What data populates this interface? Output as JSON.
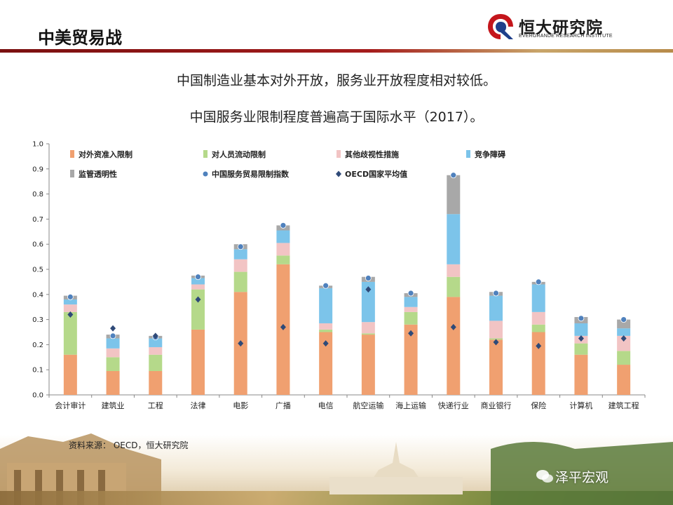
{
  "header": {
    "title": "中美贸易战",
    "logo_name": "恒大研究院",
    "logo_sub": "EVERGRANDE RESEARCH INSTITUTE"
  },
  "headlines": [
    "中国制造业基本对外开放，服务业开放程度相对较低。",
    "中国服务业限制程度普遍高于国际水平（2017）。"
  ],
  "source": "资料来源：  OECD，恒大研究院",
  "watermark": "泽平宏观",
  "chart_data": {
    "type": "bar",
    "stacked": true,
    "title": "",
    "xlabel": "",
    "ylabel": "",
    "ylim": [
      0,
      1.0
    ],
    "yticks": [
      "0.0",
      "0.1",
      "0.2",
      "0.3",
      "0.4",
      "0.5",
      "0.6",
      "0.7",
      "0.8",
      "0.9",
      "1.0"
    ],
    "grid": false,
    "legend_position": "top",
    "categories": [
      "会计审计",
      "建筑业",
      "工程",
      "法律",
      "电影",
      "广播",
      "电信",
      "航空运输",
      "海上运输",
      "快递行业",
      "商业银行",
      "保险",
      "计算机",
      "建筑工程"
    ],
    "series": [
      {
        "name": "对外资准入限制",
        "color": "#f0a070",
        "values": [
          0.16,
          0.095,
          0.095,
          0.26,
          0.41,
          0.52,
          0.25,
          0.24,
          0.28,
          0.39,
          0.22,
          0.25,
          0.16,
          0.12
        ]
      },
      {
        "name": "对人员流动限制",
        "color": "#b5d98a",
        "values": [
          0.17,
          0.055,
          0.065,
          0.16,
          0.08,
          0.035,
          0.01,
          0.005,
          0.05,
          0.08,
          0.005,
          0.03,
          0.045,
          0.055
        ]
      },
      {
        "name": "其他歧视性措施",
        "color": "#f2c4c4",
        "values": [
          0.03,
          0.035,
          0.03,
          0.02,
          0.05,
          0.05,
          0.025,
          0.045,
          0.02,
          0.05,
          0.07,
          0.05,
          0.03,
          0.06
        ]
      },
      {
        "name": "竞争障碍",
        "color": "#7cc4ea",
        "values": [
          0.02,
          0.04,
          0.035,
          0.025,
          0.04,
          0.05,
          0.14,
          0.16,
          0.04,
          0.2,
          0.1,
          0.11,
          0.05,
          0.03
        ]
      },
      {
        "name": "监管透明性",
        "color": "#a8a8a8",
        "values": [
          0.015,
          0.015,
          0.01,
          0.01,
          0.02,
          0.02,
          0.01,
          0.02,
          0.015,
          0.155,
          0.015,
          0.01,
          0.025,
          0.035
        ]
      }
    ],
    "markers": [
      {
        "name": "中国服务贸易限制指数",
        "shape": "circle",
        "color": "#4f81bd",
        "values": [
          0.39,
          0.235,
          0.23,
          0.47,
          0.59,
          0.675,
          0.435,
          0.465,
          0.405,
          0.875,
          0.405,
          0.45,
          0.305,
          0.3
        ]
      },
      {
        "name": "OECD国家平均值",
        "shape": "diamond",
        "color": "#2f4a78",
        "values": [
          0.32,
          0.265,
          0.235,
          0.38,
          0.205,
          0.27,
          0.205,
          0.42,
          0.245,
          0.27,
          0.21,
          0.195,
          0.225,
          0.225
        ]
      }
    ]
  }
}
